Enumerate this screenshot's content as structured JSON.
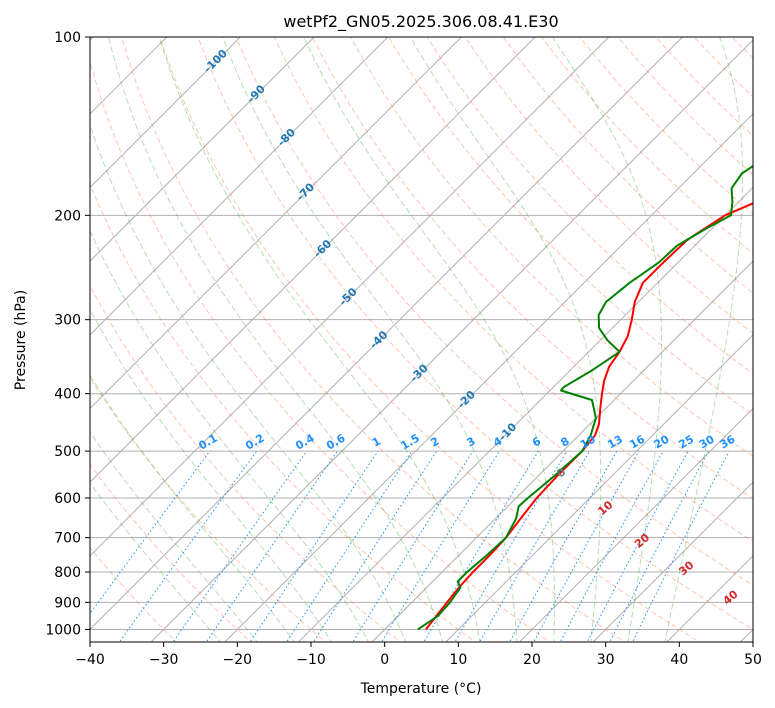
{
  "chart_data": {
    "type": "line",
    "title": "wetPf2_GN05.2025.306.08.41.E30",
    "xlabel": "Temperature (°C)",
    "ylabel": "Pressure (hPa)",
    "xlim": [
      -40,
      50
    ],
    "ylim": [
      1050,
      100
    ],
    "x_ticks": [
      "−40",
      "−30",
      "−20",
      "−10",
      "0",
      "10",
      "20",
      "30",
      "40",
      "50"
    ],
    "x_tick_values": [
      -40,
      -30,
      -20,
      -10,
      0,
      10,
      20,
      30,
      40,
      50
    ],
    "y_ticks": [
      "100",
      "200",
      "300",
      "400",
      "500",
      "600",
      "700",
      "800",
      "900",
      "1000"
    ],
    "y_tick_values": [
      100,
      200,
      300,
      400,
      500,
      600,
      700,
      800,
      900,
      1000
    ],
    "series": [
      {
        "name": "temperature",
        "color": "#ff0000",
        "points": [
          [
            5.6,
            1000
          ],
          [
            5.2,
            950
          ],
          [
            4.8,
            900
          ],
          [
            4.4,
            850
          ],
          [
            4.2,
            800
          ],
          [
            4.2,
            750
          ],
          [
            4.0,
            700
          ],
          [
            3.4,
            650
          ],
          [
            2.8,
            600
          ],
          [
            2.6,
            550
          ],
          [
            2.6,
            500
          ],
          [
            2.2,
            470
          ],
          [
            1.2,
            450
          ],
          [
            -1.0,
            420
          ],
          [
            -2.5,
            400
          ],
          [
            -4.0,
            380
          ],
          [
            -5.2,
            360
          ],
          [
            -5.8,
            340
          ],
          [
            -6.8,
            320
          ],
          [
            -8.5,
            300
          ],
          [
            -10.5,
            280
          ],
          [
            -12.0,
            260
          ],
          [
            -12.0,
            240
          ],
          [
            -11.8,
            220
          ],
          [
            -10.0,
            200
          ],
          [
            -7.6,
            190
          ],
          [
            -5.0,
            180
          ],
          [
            -2.5,
            165
          ],
          [
            0.3,
            150
          ],
          [
            4.8,
            135
          ],
          [
            9.0,
            120
          ],
          [
            14.0,
            110
          ],
          [
            20.0,
            100
          ]
        ]
      },
      {
        "name": "dewpoint",
        "color": "#008000",
        "points": [
          [
            4.5,
            1000
          ],
          [
            5.4,
            950
          ],
          [
            5.2,
            900
          ],
          [
            4.6,
            850
          ],
          [
            3.4,
            830
          ],
          [
            3.4,
            800
          ],
          [
            3.8,
            750
          ],
          [
            4.0,
            700
          ],
          [
            2.8,
            650
          ],
          [
            1.5,
            620
          ],
          [
            1.6,
            600
          ],
          [
            2.2,
            550
          ],
          [
            2.6,
            500
          ],
          [
            1.6,
            470
          ],
          [
            0.0,
            440
          ],
          [
            -3.0,
            410
          ],
          [
            -8.5,
            395
          ],
          [
            -8.6,
            390
          ],
          [
            -7.0,
            365
          ],
          [
            -5.8,
            340
          ],
          [
            -9.0,
            325
          ],
          [
            -11.8,
            310
          ],
          [
            -13.6,
            295
          ],
          [
            -14.4,
            280
          ],
          [
            -13.8,
            260
          ],
          [
            -12.6,
            240
          ],
          [
            -12.4,
            225
          ],
          [
            -10.7,
            210
          ],
          [
            -9.2,
            200
          ],
          [
            -10.8,
            190
          ],
          [
            -12.8,
            180
          ],
          [
            -13.4,
            170
          ],
          [
            -11.8,
            155
          ],
          [
            -10.8,
            140
          ],
          [
            -8.8,
            125
          ],
          [
            -6.6,
            110
          ],
          [
            -2.0,
            100
          ]
        ]
      }
    ],
    "isotherm_labels": [
      "-100",
      "-90",
      "-80",
      "-70",
      "-60",
      "-50",
      "-40",
      "-30",
      "-20",
      "-10"
    ],
    "mixing_ratio_labels": [
      "0.1",
      "0.2",
      "0.4",
      "0.6",
      "1",
      "1.5",
      "2",
      "3",
      "4",
      "6",
      "8",
      "10",
      "13",
      "16",
      "20",
      "25",
      "30",
      "36"
    ],
    "dry_adiabat_labels": [
      "0",
      "10",
      "20",
      "30",
      "40"
    ]
  },
  "colors": {
    "temperature": "#ff0000",
    "dewpoint": "#008000",
    "isotherm_label": "#1f77b4",
    "mixing_ratio": "#1e90ff",
    "dry_adiabat": "#ff7f50",
    "moist_adiabat": "#2ca02c",
    "dry_adiabat_label": "#d62728",
    "grid": "#b0b0b0"
  }
}
